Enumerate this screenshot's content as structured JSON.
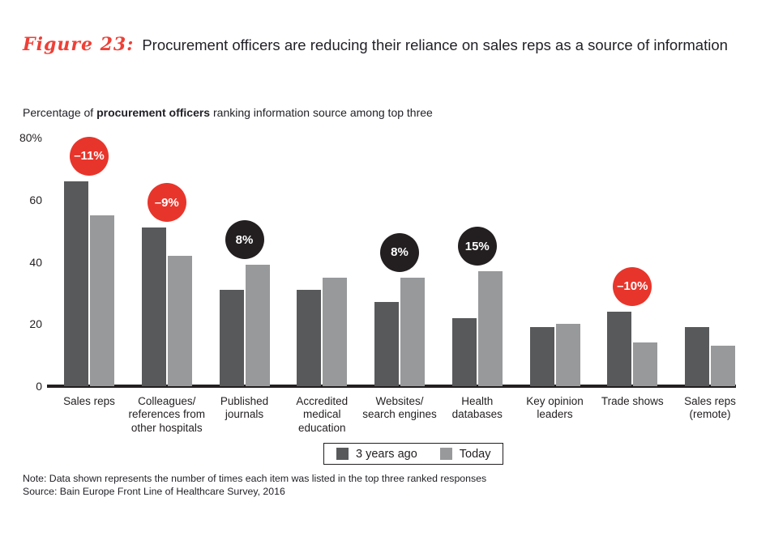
{
  "figure": {
    "label": "Figure 23:",
    "title": "Procurement officers are reducing their reliance on sales reps as a source of information"
  },
  "subtitle": {
    "prefix": "Percentage of ",
    "bold": "procurement officers",
    "suffix": " ranking information source among top three"
  },
  "colors": {
    "figure_label_red": "#ee4037",
    "dark_bar": "#58595b",
    "light_bar": "#97999b",
    "badge_decrease": "#e8352b",
    "badge_increase": "#231f20",
    "axis": "#231f20"
  },
  "chart_data": {
    "type": "bar",
    "title": "Percentage of procurement officers ranking information source among top three",
    "categories": [
      "Sales reps",
      "Colleagues/\nreferences from\nother hospitals",
      "Published\njournals",
      "Accredited\nmedical\neducation",
      "Websites/\nsearch engines",
      "Health\ndatabases",
      "Key opinion\nleaders",
      "Trade shows",
      "Sales reps\n(remote)"
    ],
    "series": [
      {
        "name": "3 years ago",
        "values": [
          66,
          51,
          31,
          31,
          27,
          22,
          19,
          24,
          19
        ]
      },
      {
        "name": "Today",
        "values": [
          55,
          42,
          39,
          35,
          35,
          37,
          20,
          14,
          13
        ]
      }
    ],
    "badges": [
      {
        "index": 0,
        "label": "–11%",
        "direction": "decrease"
      },
      {
        "index": 1,
        "label": "–9%",
        "direction": "decrease"
      },
      {
        "index": 2,
        "label": "8%",
        "direction": "increase"
      },
      {
        "index": 4,
        "label": "8%",
        "direction": "increase"
      },
      {
        "index": 5,
        "label": "15%",
        "direction": "increase"
      },
      {
        "index": 7,
        "label": "–10%",
        "direction": "decrease"
      }
    ],
    "xlabel": "",
    "ylabel": "",
    "ylim": [
      0,
      80
    ],
    "yticks": [
      {
        "label": "80%",
        "value": 80
      },
      {
        "label": "60",
        "value": 60
      },
      {
        "label": "40",
        "value": 40
      },
      {
        "label": "20",
        "value": 20
      },
      {
        "label": "0",
        "value": 0
      }
    ],
    "grid": false,
    "legend_position": "bottom"
  },
  "legend": {
    "items": [
      {
        "label": "3 years ago",
        "color": "#58595b"
      },
      {
        "label": "Today",
        "color": "#97999b"
      }
    ]
  },
  "footnotes": {
    "note": "Note: Data shown represents the number of times each item was listed in the top three ranked responses",
    "source": "Source: Bain Europe Front Line of Healthcare Survey, 2016"
  }
}
